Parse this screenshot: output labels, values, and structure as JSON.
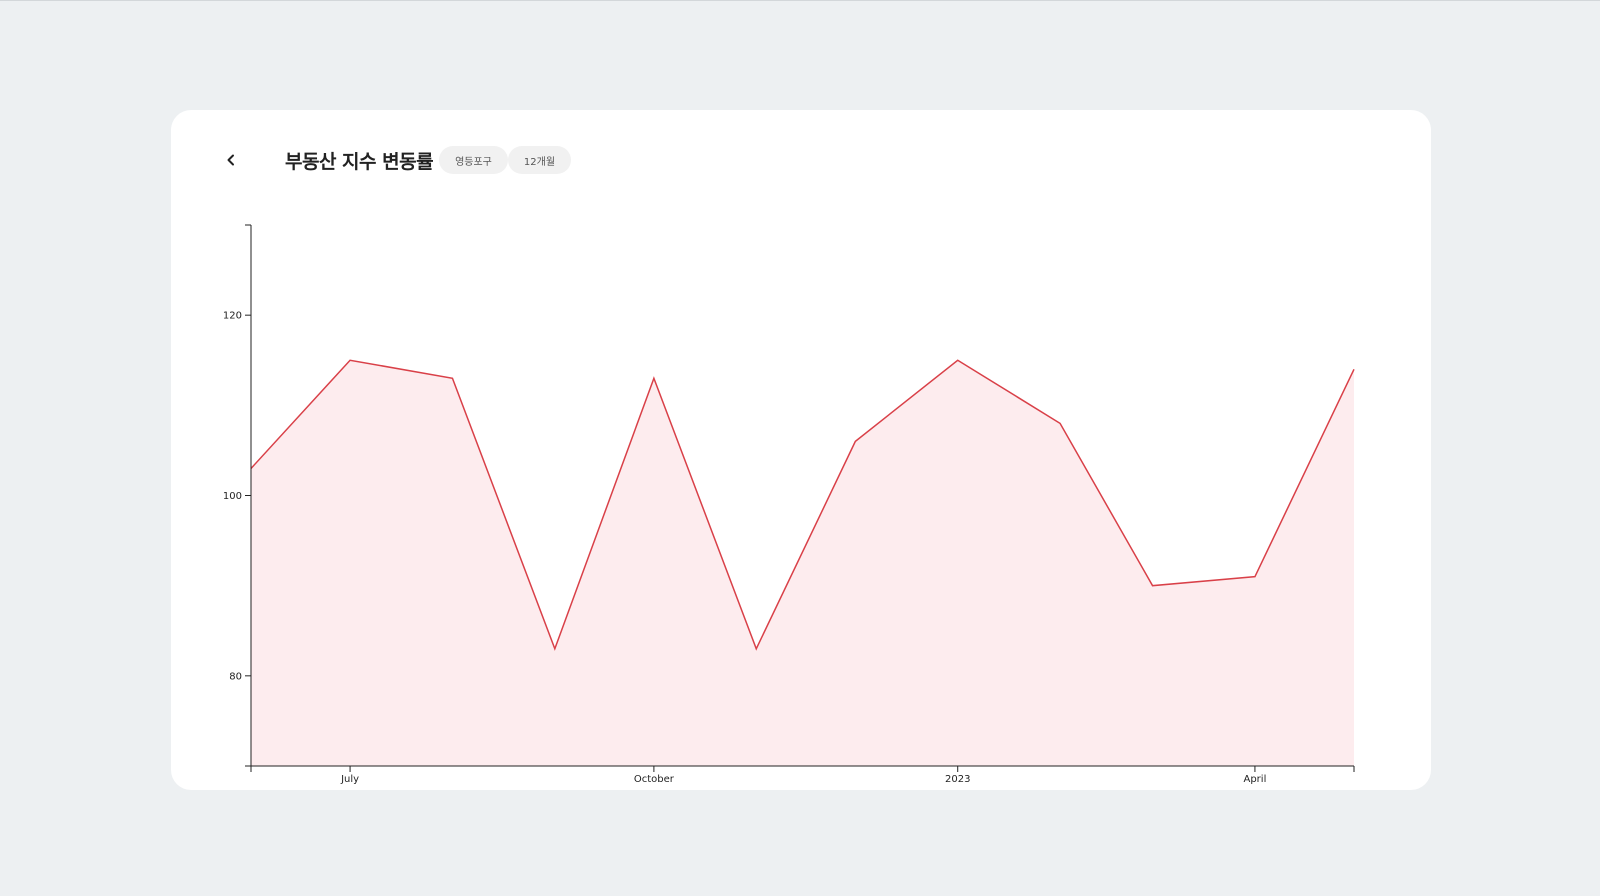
{
  "header": {
    "back_icon": "chevron-left-icon",
    "title": "부동산 지수 변동률",
    "chips": [
      "영등포구",
      "12개월"
    ]
  },
  "colors": {
    "line": "#d94048",
    "fill": "#fdecee",
    "axis": "#222222",
    "background": "#edf0f2",
    "card": "#ffffff"
  },
  "chart_data": {
    "type": "area",
    "x": [
      "2022-06",
      "2022-07",
      "2022-08",
      "2022-09",
      "2022-10",
      "2022-11",
      "2022-12",
      "2023-01",
      "2023-02",
      "2023-03",
      "2023-04",
      "2023-05"
    ],
    "values": [
      103,
      115,
      113,
      83,
      113,
      83,
      106,
      115,
      108,
      90,
      91,
      114
    ],
    "ylim": [
      70,
      130
    ],
    "yticks": [
      80,
      100,
      120
    ],
    "xticks": [
      {
        "label": "July",
        "at": "2022-07"
      },
      {
        "label": "October",
        "at": "2022-10"
      },
      {
        "label": "2023",
        "at": "2023-01"
      },
      {
        "label": "April",
        "at": "2023-04"
      }
    ],
    "title": "",
    "xlabel": "",
    "ylabel": "",
    "grid": false,
    "legend": "none"
  }
}
